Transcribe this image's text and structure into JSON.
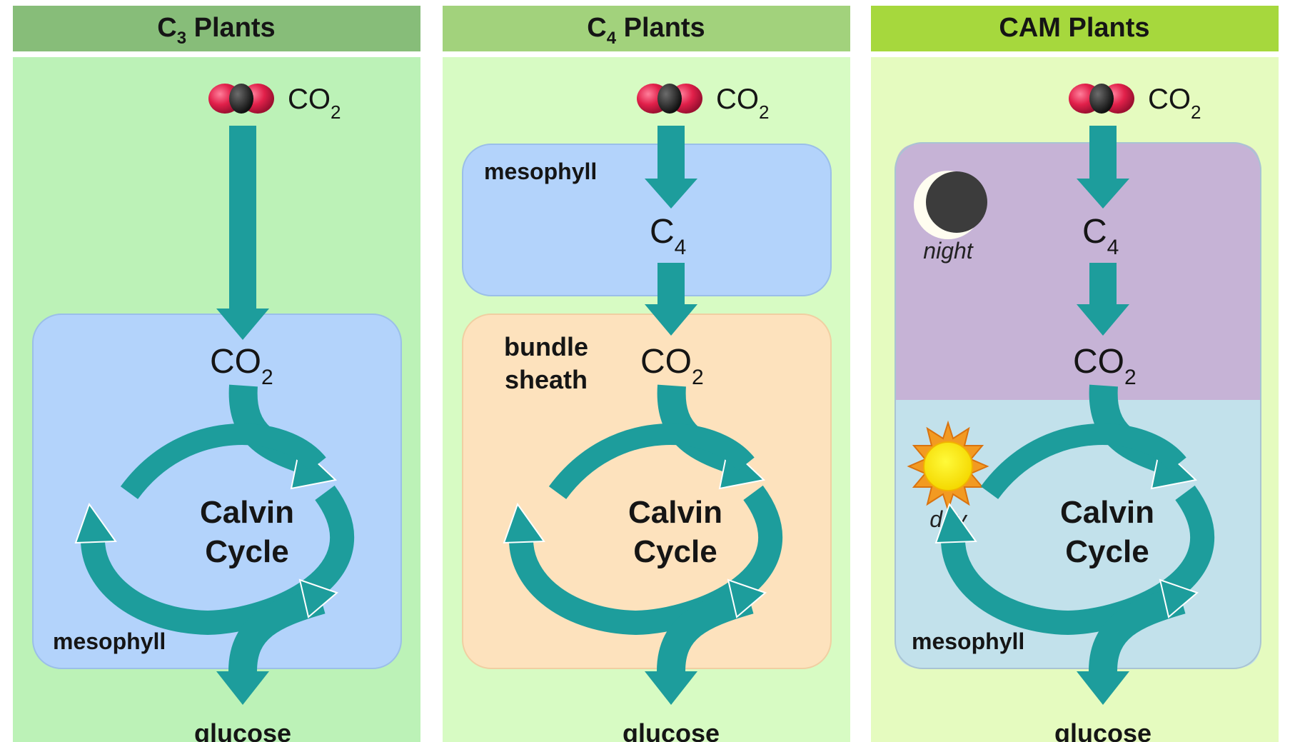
{
  "panels": [
    {
      "title": "C",
      "title_sub": "3",
      "title_rest": " Plants",
      "header_color": "#87bd79",
      "bg_color": "#bcf2b7",
      "co2_in": {
        "label": "CO",
        "sub": "2"
      },
      "regions": [
        {
          "name": "mesophyll",
          "label": "mesophyll",
          "color": "#b3d3fb"
        }
      ],
      "co2_mid": {
        "label": "CO",
        "sub": "2"
      },
      "cycle": {
        "line1": "Calvin",
        "line2": "Cycle"
      },
      "output": "glucose"
    },
    {
      "title": "C",
      "title_sub": "4",
      "title_rest": " Plants",
      "header_color": "#a2d27c",
      "bg_color": "#d7fbc3",
      "co2_in": {
        "label": "CO",
        "sub": "2"
      },
      "regions": [
        {
          "name": "mesophyll",
          "label": "mesophyll",
          "color": "#b3d3fb"
        },
        {
          "name": "bundle-sheath",
          "label_line1": "bundle",
          "label_line2": "sheath",
          "color": "#fde2bd"
        }
      ],
      "c4": {
        "label": "C",
        "sub": "4"
      },
      "co2_mid": {
        "label": "CO",
        "sub": "2"
      },
      "cycle": {
        "line1": "Calvin",
        "line2": "Cycle"
      },
      "output": "glucose"
    },
    {
      "title": "CAM Plants",
      "header_color": "#a6d83d",
      "bg_color": "#e5fbbf",
      "co2_in": {
        "label": "CO",
        "sub": "2"
      },
      "regions": [
        {
          "name": "night-zone",
          "color": "#c6b3d6"
        },
        {
          "name": "day-zone",
          "color": "#c2e1eb"
        }
      ],
      "night": {
        "label": "night",
        "icon": "moon-icon"
      },
      "day": {
        "label": "day",
        "icon": "sun-icon"
      },
      "c4": {
        "label": "C",
        "sub": "4"
      },
      "co2_mid": {
        "label": "CO",
        "sub": "2"
      },
      "cycle": {
        "line1": "Calvin",
        "line2": "Cycle"
      },
      "region_label": "mesophyll",
      "output": "glucose"
    }
  ],
  "colors": {
    "arrow": "#1d9d9c",
    "arrow_light": "#35b7b1",
    "molecule_red": "#e1204a",
    "molecule_dark": "#222222"
  }
}
